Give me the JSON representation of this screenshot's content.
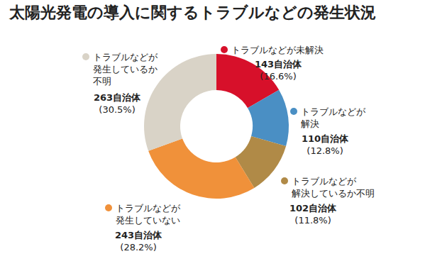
{
  "chart_data": {
    "type": "pie",
    "title": "太陽光発電の導入に関するトラブルなどの発生状況",
    "categories": [
      "トラブルなどが未解決",
      "トラブルなどが\n解決",
      "トラブルなどが\n解決しているか不明",
      "トラブルなどが\n発生していない",
      "トラブルなどが\n発生しているか\n不明"
    ],
    "values": [
      16.6,
      12.8,
      11.8,
      28.2,
      30.5
    ],
    "value_labels": [
      "(16.6%)",
      "(12.8%)",
      "(11.8%)",
      "(28.2%)",
      "(30.5%)"
    ],
    "counts": [
      143,
      110,
      102,
      243,
      263
    ],
    "count_labels": [
      "143自治体",
      "110自治体",
      "102自治体",
      "243自治体",
      "263自治体"
    ],
    "colors": [
      "#d7102a",
      "#4a8fc4",
      "#b08a47",
      "#f0913a",
      "#d9d3c7"
    ],
    "data_labels": true
  }
}
